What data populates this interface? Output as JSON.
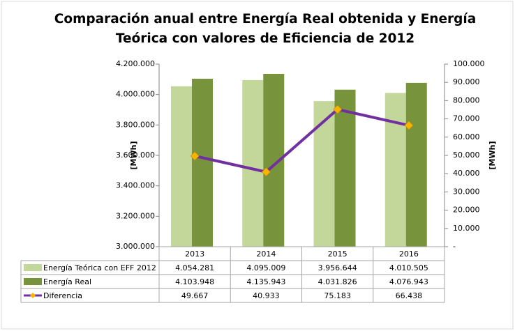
{
  "chart_data": {
    "type": "bar",
    "title": "Comparación anual entre Energía Real obtenida y Energía Teórica con valores de Eficiencia de 2012",
    "categories": [
      "2013",
      "2014",
      "2015",
      "2016"
    ],
    "series": [
      {
        "name": "Energía Teórica con EFF 2012",
        "type": "bar",
        "color": "#c4d79b",
        "values": [
          4054281,
          4095009,
          3956644,
          4010505
        ],
        "value_labels": [
          "4.054.281",
          "4.095.009",
          "3.956.644",
          "4.010.505"
        ]
      },
      {
        "name": "Energía Real",
        "type": "bar",
        "color": "#77933c",
        "values": [
          4103948,
          4135943,
          4031826,
          4076943
        ],
        "value_labels": [
          "4.103.948",
          "4.135.943",
          "4.031.826",
          "4.076.943"
        ]
      },
      {
        "name": "Diferencia",
        "type": "line",
        "axis": "y2",
        "color": "#7030a0",
        "marker_color": "#f5b400",
        "values": [
          49667,
          40933,
          75183,
          66438
        ],
        "value_labels": [
          "49.667",
          "40.933",
          "75.183",
          "66.438"
        ]
      }
    ],
    "ylabel": "[MWh]",
    "y2label": "[MWh]",
    "ylim": [
      3000000,
      4200000
    ],
    "yticks": [
      {
        "value": 3000000,
        "label": "3.000.000"
      },
      {
        "value": 3200000,
        "label": "3.200.000"
      },
      {
        "value": 3400000,
        "label": "3.400.000"
      },
      {
        "value": 3600000,
        "label": "3.600.000"
      },
      {
        "value": 3800000,
        "label": "3.800.000"
      },
      {
        "value": 4000000,
        "label": "4.000.000"
      },
      {
        "value": 4200000,
        "label": "4.200.000"
      }
    ],
    "y2lim": [
      0,
      100000
    ],
    "y2ticks": [
      {
        "value": 0,
        "label": "-"
      },
      {
        "value": 10000,
        "label": "10.000"
      },
      {
        "value": 20000,
        "label": "20.000"
      },
      {
        "value": 30000,
        "label": "30.000"
      },
      {
        "value": 40000,
        "label": "40.000"
      },
      {
        "value": 50000,
        "label": "50.000"
      },
      {
        "value": 60000,
        "label": "60.000"
      },
      {
        "value": 70000,
        "label": "70.000"
      },
      {
        "value": 80000,
        "label": "80.000"
      },
      {
        "value": 90000,
        "label": "90.000"
      },
      {
        "value": 100000,
        "label": "100.000"
      }
    ],
    "grid": false
  }
}
